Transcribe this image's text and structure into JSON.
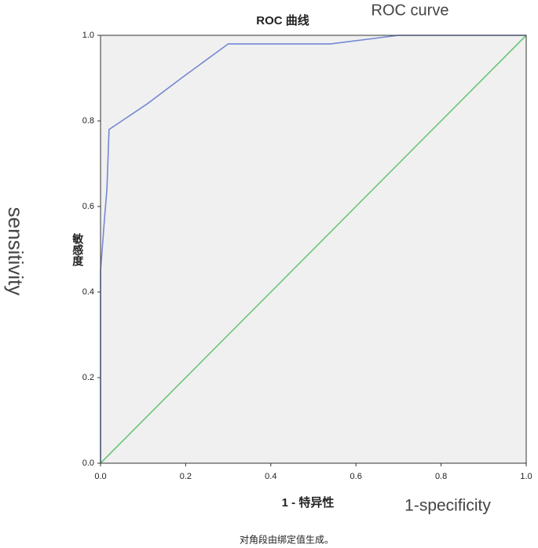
{
  "chart_data": {
    "type": "line",
    "title": "ROC 曲线",
    "annotations": [
      "ROC curve",
      "1-specificity",
      "sensitivity"
    ],
    "x_label": "1 - 特异性",
    "y_label": "敏感度",
    "footnote": "对角段由绑定值生成。",
    "xlim": [
      0,
      1
    ],
    "ylim": [
      0,
      1
    ],
    "xticks": [
      {
        "value": 0,
        "label": "0.0"
      },
      0.2,
      0.4,
      0.6,
      0.8,
      {
        "value": 1,
        "label": "1.0"
      }
    ],
    "yticks": [
      {
        "value": 0,
        "label": "0.0"
      },
      0.2,
      0.4,
      0.6,
      0.8,
      {
        "value": 1,
        "label": "1.0"
      }
    ],
    "grid": false,
    "series": [
      {
        "color": "#7388d4",
        "x": [
          0,
          0,
          0.01,
          0.015,
          0.02,
          0.05,
          0.11,
          0.19,
          0.3,
          0.54,
          0.7,
          1
        ],
        "values": [
          0,
          0.45,
          0.58,
          0.64,
          0.78,
          0.8,
          0.84,
          0.9,
          0.98,
          0.98,
          1,
          1
        ]
      },
      {
        "color": "#6cc67a",
        "x": [
          0,
          1
        ],
        "values": [
          0,
          1
        ]
      }
    ]
  }
}
